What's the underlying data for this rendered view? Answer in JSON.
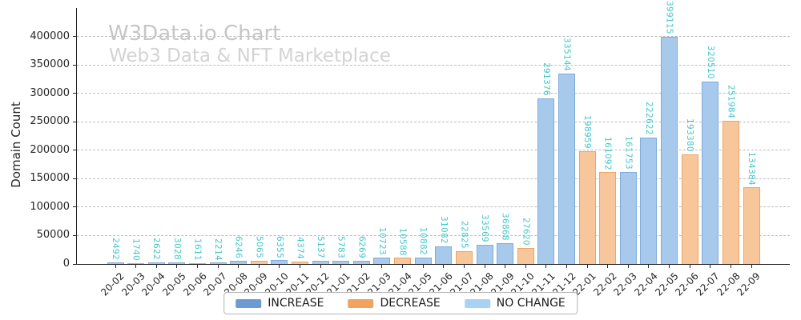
{
  "chart_data": {
    "type": "bar",
    "title": "W3Data.io Chart",
    "subtitle": "Web3 Data & NFT Marketplace",
    "ylabel": "Domain Count",
    "xlabel": "",
    "ylim": [
      0,
      450000
    ],
    "yticks": [
      0,
      50000,
      100000,
      150000,
      200000,
      250000,
      300000,
      350000,
      400000
    ],
    "grid": true,
    "legend_position": "bottom-center",
    "categories": [
      "20-02",
      "20-03",
      "20-04",
      "20-05",
      "20-06",
      "20-07",
      "20-08",
      "20-09",
      "20-10",
      "20-11",
      "20-12",
      "21-01",
      "21-02",
      "21-03",
      "21-04",
      "21-05",
      "21-06",
      "21-07",
      "21-08",
      "21-09",
      "21-10",
      "21-11",
      "21-12",
      "22-01",
      "22-02",
      "22-03",
      "22-04",
      "22-05",
      "22-06",
      "22-07",
      "22-08",
      "22-09"
    ],
    "values": [
      2492,
      1740,
      2622,
      3028,
      1611,
      2214,
      6246,
      5065,
      6355,
      4374,
      5137,
      5783,
      6269,
      10723,
      10588,
      10882,
      31082,
      22825,
      33569,
      36868,
      27620,
      291376,
      335144,
      198959,
      161092,
      161753,
      222622,
      399115,
      193380,
      320510,
      251984,
      134384
    ],
    "bar_types": [
      "increase",
      "decrease",
      "increase",
      "increase",
      "decrease",
      "increase",
      "increase",
      "decrease",
      "increase",
      "decrease",
      "increase",
      "increase",
      "increase",
      "increase",
      "decrease",
      "increase",
      "increase",
      "decrease",
      "increase",
      "increase",
      "decrease",
      "increase",
      "increase",
      "decrease",
      "decrease",
      "increase",
      "increase",
      "increase",
      "decrease",
      "increase",
      "decrease",
      "decrease"
    ],
    "legend": [
      {
        "key": "increase",
        "label": "INCREASE",
        "color": "#6c9bd2"
      },
      {
        "key": "decrease",
        "label": "DECREASE",
        "color": "#f0a35e"
      },
      {
        "key": "nochange",
        "label": "NO CHANGE",
        "color": "#a8d2f4"
      }
    ],
    "colors": {
      "increase": {
        "fill": "#a6c9ec",
        "edge": "#82abdc"
      },
      "decrease": {
        "fill": "#f8c69b",
        "edge": "#f0a263"
      },
      "nochange": {
        "fill": "#c5e0f8",
        "edge": "#9ccdf2"
      },
      "value_label": "#43c6ca",
      "axis": "#262626",
      "gridline": "#bdbdbd"
    }
  }
}
